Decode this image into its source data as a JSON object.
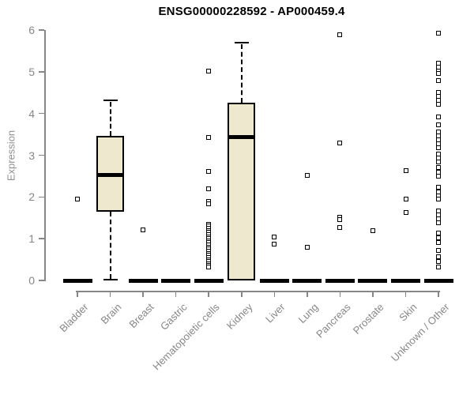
{
  "chart_data": {
    "type": "boxplot",
    "title": "ENSG00000228592 - AP000459.4",
    "ylabel": "Expression",
    "xlabel": "",
    "ylim": [
      0,
      6
    ],
    "yticks": [
      "0",
      "1",
      "2",
      "3",
      "4",
      "5",
      "6"
    ],
    "grid": false,
    "legend_position": "none",
    "colors": {
      "box_fill": "#ede8ce",
      "box_border": "#000000",
      "median": "#000000",
      "whisker": "#000000",
      "outlier_border": "#000000",
      "outlier_fill": "#ffffff",
      "axis": "#878787",
      "tick_label": "#878787",
      "title": "#000000"
    },
    "categories": [
      "Bladder",
      "Brain",
      "Breast",
      "Gastric",
      "Hematopoietic cells",
      "Kidney",
      "Liver",
      "Lung",
      "Pancreas",
      "Prostate",
      "Skin",
      "Unknown / Other"
    ],
    "series": [
      {
        "category": "Bladder",
        "low": 0,
        "q1": 0,
        "median": 0,
        "q3": 0,
        "high": 0,
        "outliers": [
          1.95
        ]
      },
      {
        "category": "Brain",
        "low": 0,
        "q1": 1.65,
        "median": 2.53,
        "q3": 3.47,
        "high": 4.32,
        "outliers": []
      },
      {
        "category": "Breast",
        "low": 0,
        "q1": 0,
        "median": 0,
        "q3": 0,
        "high": 0,
        "outliers": [
          1.21
        ]
      },
      {
        "category": "Gastric",
        "low": 0,
        "q1": 0,
        "median": 0,
        "q3": 0,
        "high": 0,
        "outliers": []
      },
      {
        "category": "Hematopoietic cells",
        "low": 0,
        "q1": 0,
        "median": 0,
        "q3": 0,
        "high": 0,
        "outliers": [
          5.01,
          3.43,
          2.61,
          2.2,
          1.9,
          1.84,
          1.35,
          1.3,
          1.25,
          1.2,
          1.15,
          1.1,
          1.05,
          1.0,
          0.95,
          0.9,
          0.85,
          0.8,
          0.75,
          0.7,
          0.65,
          0.6,
          0.55,
          0.5,
          0.45,
          0.4,
          0.36,
          0.32
        ]
      },
      {
        "category": "Kidney",
        "low": 0,
        "q1": 0,
        "median": 3.43,
        "q3": 4.26,
        "high": 5.7,
        "outliers": []
      },
      {
        "category": "Liver",
        "low": 0,
        "q1": 0,
        "median": 0,
        "q3": 0,
        "high": 0,
        "outliers": [
          1.04,
          0.87
        ]
      },
      {
        "category": "Lung",
        "low": 0,
        "q1": 0,
        "median": 0,
        "q3": 0,
        "high": 0,
        "outliers": [
          2.52,
          0.79
        ]
      },
      {
        "category": "Pancreas",
        "low": 0,
        "q1": 0,
        "median": 0,
        "q3": 0,
        "high": 0,
        "outliers": [
          5.89,
          3.29,
          1.52,
          1.45,
          1.27
        ]
      },
      {
        "category": "Prostate",
        "low": 0,
        "q1": 0,
        "median": 0,
        "q3": 0,
        "high": 0,
        "outliers": [
          1.19
        ]
      },
      {
        "category": "Skin",
        "low": 0,
        "q1": 0,
        "median": 0,
        "q3": 0,
        "high": 0,
        "outliers": [
          2.63,
          1.95,
          1.63
        ]
      },
      {
        "category": "Unknown / Other",
        "low": 0,
        "q1": 0,
        "median": 0,
        "q3": 0,
        "high": 0,
        "outliers": [
          5.92,
          5.21,
          5.11,
          5.02,
          4.96,
          4.79,
          4.51,
          4.41,
          4.31,
          4.22,
          3.92,
          3.73,
          3.56,
          3.47,
          3.37,
          3.28,
          3.18,
          3.03,
          2.93,
          2.83,
          2.71,
          2.6,
          2.5,
          2.23,
          2.12,
          2.02,
          1.95,
          1.67,
          1.57,
          1.48,
          1.38,
          1.14,
          1.02,
          0.91,
          0.72,
          0.57,
          0.45,
          0.32
        ]
      }
    ]
  }
}
